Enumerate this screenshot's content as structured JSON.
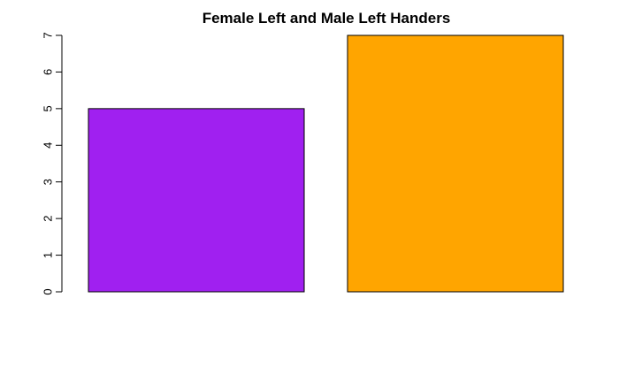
{
  "chart_data": {
    "type": "bar",
    "title": "Female Left and Male Left Handers",
    "categories": [
      "",
      ""
    ],
    "values": [
      5,
      7
    ],
    "colors": [
      "#a020f0",
      "#ffa500"
    ],
    "xlabel": "",
    "ylabel": "",
    "ylim": [
      0,
      7
    ],
    "yticks": [
      0,
      1,
      2,
      3,
      4,
      5,
      6,
      7
    ],
    "grid": false,
    "legend": "none"
  }
}
